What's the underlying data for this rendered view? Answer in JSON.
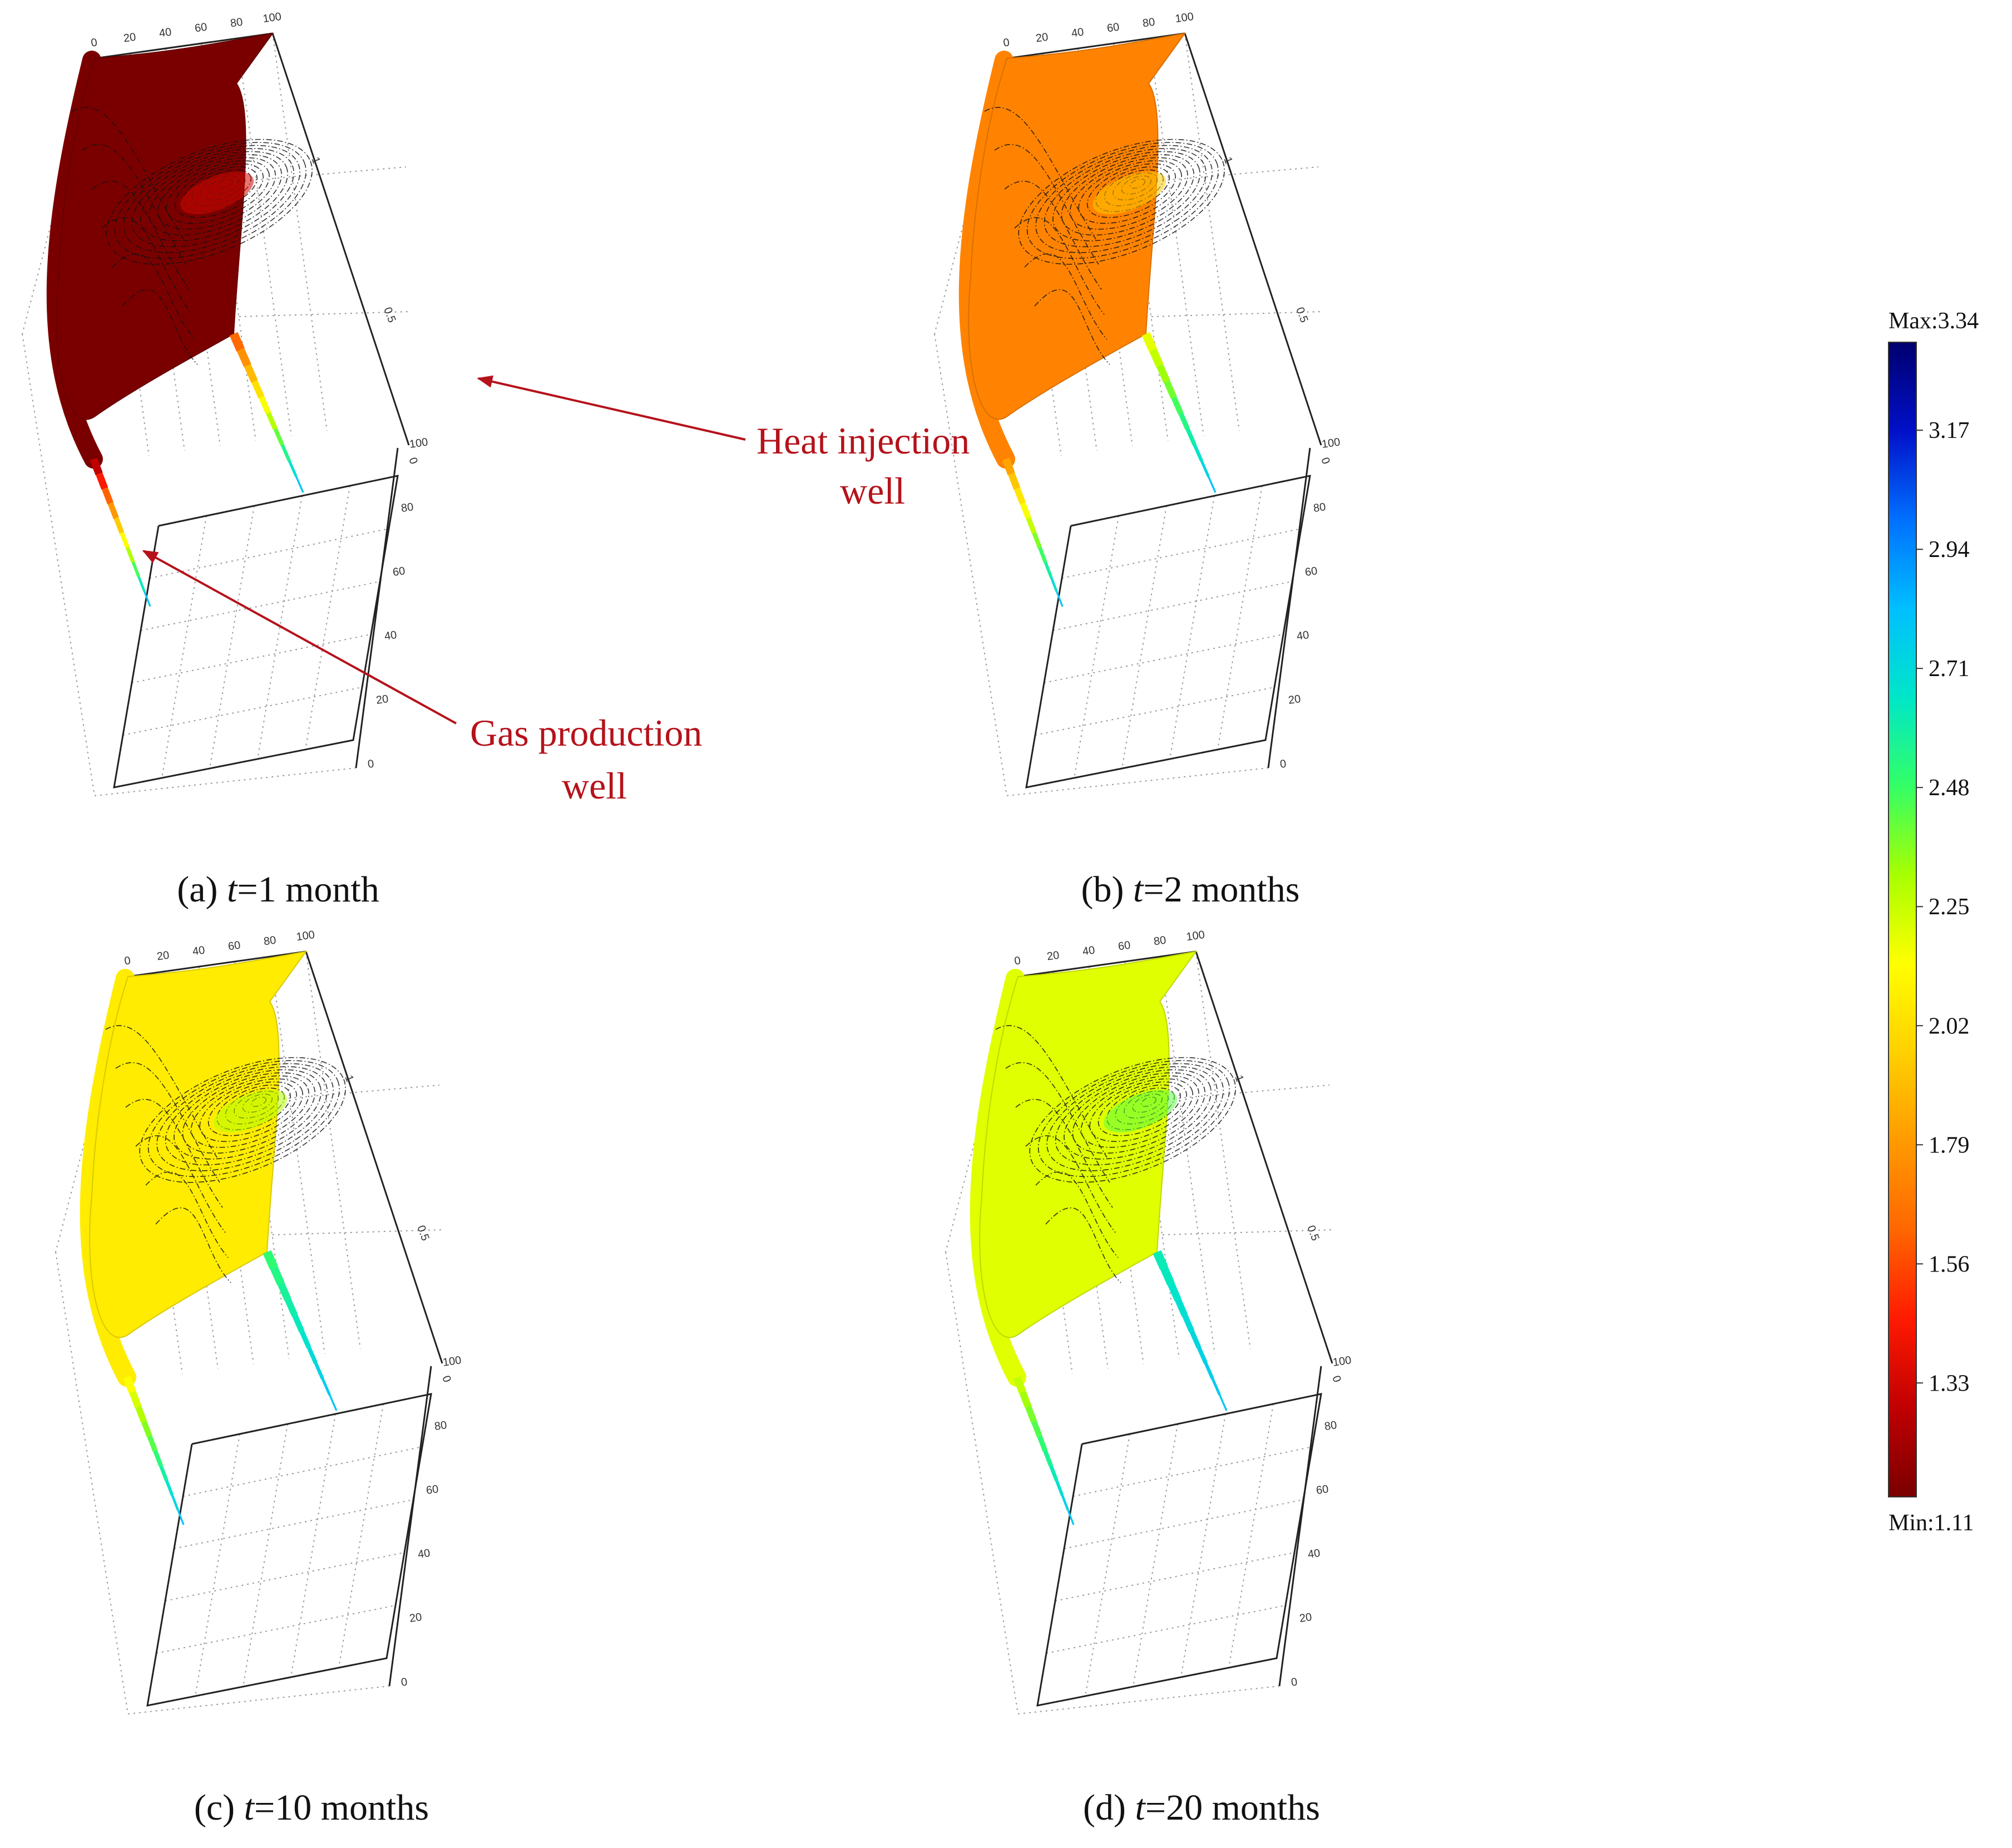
{
  "colors": {
    "annotation": "#b5121b",
    "colormap": [
      "#7a0000",
      "#c00000",
      "#ff1a00",
      "#ff6600",
      "#ff9a00",
      "#ffd000",
      "#ffff00",
      "#a8ff00",
      "#33ff66",
      "#00e6c8",
      "#00bfff",
      "#0070ff",
      "#0010c8",
      "#00006e"
    ]
  },
  "chart_data": [
    {
      "type": "surface3d",
      "panel": "a",
      "caption": {
        "prefix": "(a) ",
        "var": "t",
        "rest": "=1 month"
      },
      "field_value": 1.11,
      "well_tip_value": 2.8,
      "xticks": [
        "0",
        "20",
        "40",
        "60",
        "80",
        "100"
      ],
      "yticks": [
        "0",
        "20",
        "40",
        "60",
        "80",
        "100"
      ],
      "zticks": [
        "0.5",
        "1"
      ],
      "annotations": [
        {
          "lines": [
            "Heat injection",
            "well"
          ]
        },
        {
          "lines": [
            "Gas production",
            "well"
          ]
        }
      ]
    },
    {
      "type": "surface3d",
      "panel": "b",
      "caption": {
        "prefix": "(b) ",
        "var": "t",
        "rest": "=2 months"
      },
      "field_value": 1.72,
      "well_tip_value": 2.8,
      "xticks": [
        "0",
        "20",
        "40",
        "60",
        "80",
        "100"
      ],
      "yticks": [
        "0",
        "20",
        "40",
        "60",
        "80",
        "100"
      ],
      "zticks": [
        "0.5",
        "1"
      ]
    },
    {
      "type": "surface3d",
      "panel": "c",
      "caption": {
        "prefix": "(c) ",
        "var": "t",
        "rest": "=10 months"
      },
      "field_value": 2.07,
      "well_tip_value": 2.8,
      "xticks": [
        "0",
        "20",
        "40",
        "60",
        "80",
        "100"
      ],
      "yticks": [
        "0",
        "20",
        "40",
        "60",
        "80",
        "100"
      ],
      "zticks": [
        "0.5",
        "1"
      ]
    },
    {
      "type": "surface3d",
      "panel": "d",
      "caption": {
        "prefix": "(d) ",
        "var": "t",
        "rest": "=20 months"
      },
      "field_value": 2.2,
      "well_tip_value": 2.8,
      "xticks": [
        "0",
        "20",
        "40",
        "60",
        "80",
        "100"
      ],
      "yticks": [
        "0",
        "20",
        "40",
        "60",
        "80",
        "100"
      ],
      "zticks": [
        "0.5",
        "1"
      ]
    }
  ],
  "colorbar": {
    "max_label": "Max:3.34",
    "min_label": "Min:1.11",
    "max": 3.34,
    "min": 1.11,
    "ticks": [
      "3.17",
      "2.94",
      "2.71",
      "2.48",
      "2.25",
      "2.02",
      "1.79",
      "1.56",
      "1.33"
    ]
  }
}
